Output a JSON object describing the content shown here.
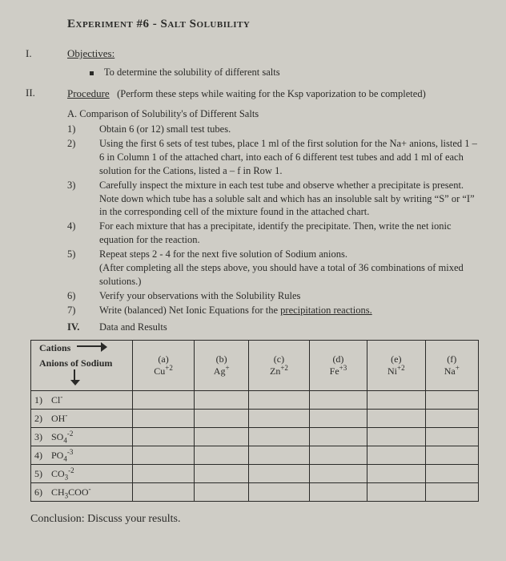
{
  "title": "Experiment #6 - Salt Solubility",
  "sections": {
    "I": {
      "heading": "Objectives:"
    },
    "II": {
      "heading": "Procedure",
      "tail": "(Perform these steps while waiting for the Ksp vaporization to be completed)"
    }
  },
  "objective_bullet": "To determine the solubility of different salts",
  "subA": "A.  Comparison of Solubility's of Different Salts",
  "steps": [
    {
      "n": "1)",
      "t": "Obtain 6 (or 12) small test tubes."
    },
    {
      "n": "2)",
      "t": "Using the first 6 sets of test tubes, place 1 ml of the first solution for the Na+ anions, listed 1 – 6 in Column 1 of the attached chart, into each of 6 different test tubes and add 1 ml of each solution for the Cations, listed a – f in Row 1."
    },
    {
      "n": "3)",
      "t": "Carefully inspect the mixture in each test tube and observe whether a precipitate is present. Note down which tube has a soluble salt and which has an insoluble salt by writing “S” or “I” in the corresponding cell of the mixture found in the attached chart."
    },
    {
      "n": "4)",
      "t": "For each mixture that has a precipitate, identify the precipitate. Then, write the net ionic equation for the reaction."
    },
    {
      "n": "5)",
      "t": "Repeat steps 2 - 4 for the next five solution of Sodium anions.\n(After completing all the steps above, you should have a total of 36 combinations of mixed solutions.)"
    },
    {
      "n": "6)",
      "t": "Verify your observations with the Solubility Rules"
    },
    {
      "n": "7)",
      "t": "Write (balanced) Net Ionic Equations for the "
    }
  ],
  "step7_tail": "precipitation reactions.",
  "iv_label": "IV.",
  "iv_text": "Data and Results",
  "table": {
    "cations_label": "Cations",
    "anions_label": "Anions of Sodium",
    "col_letters": [
      "(a)",
      "(b)",
      "(c)",
      "(d)",
      "(e)",
      "(f)"
    ],
    "cations": [
      {
        "html": "Cu<sup>+2</sup>"
      },
      {
        "html": "Ag<sup>+</sup>"
      },
      {
        "html": "Zn<sup>+2</sup>"
      },
      {
        "html": "Fe<sup>+3</sup>"
      },
      {
        "html": "Ni<sup>+2</sup>"
      },
      {
        "html": "Na<sup>+</sup>"
      }
    ],
    "anions": [
      {
        "n": "1)",
        "html": "Cl<sup>-</sup>"
      },
      {
        "n": "2)",
        "html": "OH<sup>-</sup>"
      },
      {
        "n": "3)",
        "html": "SO<sub class='ss'>4</sub><sup>-2</sup>"
      },
      {
        "n": "4)",
        "html": "PO<sub class='ss'>4</sub><sup>-3</sup>"
      },
      {
        "n": "5)",
        "html": "CO<sub class='ss'>3</sub><sup>-2</sup>"
      },
      {
        "n": "6)",
        "html": "CH<sub class='ss'>3</sub>COO<sup>-</sup>"
      }
    ]
  },
  "conclusion": "Conclusion:  Discuss your results."
}
